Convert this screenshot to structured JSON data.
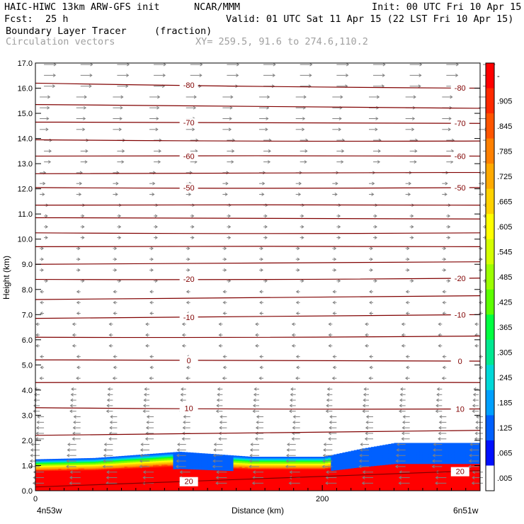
{
  "header": {
    "model": "HAIC-HIWC 13km ARW-GFS init",
    "org": "NCAR/MMM",
    "init": "Init: 00 UTC Fri 10 Apr 15",
    "fcst_label": "Fcst:",
    "fcst_value": "25 h",
    "valid": "Valid: 01 UTC Sat 11 Apr 15 (22 LST Fri 10 Apr 15)",
    "field": "Boundary Layer Tracer",
    "field_units": "(fraction)",
    "vectors": "Circulation vectors",
    "xy": "XY= 259.5, 91.6 to 274.6,110.2"
  },
  "chart_data": {
    "type": "heatmap",
    "ylabel": "Height (km)",
    "xlabel": "Distance (km)",
    "ylim": [
      0,
      17
    ],
    "xlim": [
      0,
      310
    ],
    "y_ticks": [
      "0.0",
      "1.0",
      "2.0",
      "3.0",
      "4.0",
      "5.0",
      "6.0",
      "7.0",
      "8.0",
      "9.0",
      "10.0",
      "11.0",
      "12.0",
      "13.0",
      "14.0",
      "15.0",
      "16.0",
      "17.0"
    ],
    "x_ticks": [
      {
        "value": 0,
        "label": "0"
      },
      {
        "value": 200,
        "label": "200"
      }
    ],
    "x_endpoints": {
      "left": "4n53w",
      "right": "6n51w"
    },
    "colorbar_labels": [
      "-",
      ".905",
      ".845",
      ".785",
      ".725",
      ".665",
      ".605",
      ".545",
      ".485",
      ".425",
      ".365",
      ".305",
      ".245",
      ".185",
      ".125",
      ".065",
      ".005"
    ],
    "colorbar_colors": [
      "#ff0000",
      "#ff2a00",
      "#ff5500",
      "#ff8000",
      "#ffaa00",
      "#ffd200",
      "#ffff00",
      "#d4ff00",
      "#9cff00",
      "#5cff00",
      "#00ff40",
      "#00e890",
      "#00d8d8",
      "#00a0ff",
      "#0060ff",
      "#0010ff",
      "#ffffff"
    ],
    "tracer_top_km": [
      {
        "x": 0,
        "top": 1.25
      },
      {
        "x": 40,
        "top": 1.3
      },
      {
        "x": 100,
        "top": 1.55
      },
      {
        "x": 150,
        "top": 1.35
      },
      {
        "x": 200,
        "top": 1.35
      },
      {
        "x": 225,
        "top": 1.65
      },
      {
        "x": 250,
        "top": 1.9
      },
      {
        "x": 310,
        "top": 1.9
      }
    ],
    "isotherms": [
      {
        "y_left": 16.2,
        "y_right": 16.0,
        "label": "-80"
      },
      {
        "y_left": 15.35,
        "y_right": 15.2,
        "label": ""
      },
      {
        "y_left": 14.65,
        "y_right": 14.6,
        "label": "-70"
      },
      {
        "y_left": 13.95,
        "y_right": 13.9,
        "label": ""
      },
      {
        "y_left": 13.3,
        "y_right": 13.3,
        "label": "-60"
      },
      {
        "y_left": 12.6,
        "y_right": 12.65,
        "label": ""
      },
      {
        "y_left": 12.05,
        "y_right": 12.05,
        "label": "-50"
      },
      {
        "y_left": 11.35,
        "y_right": 11.35,
        "label": ""
      },
      {
        "y_left": 10.85,
        "y_right": 10.8,
        "label": ""
      },
      {
        "y_left": 10.25,
        "y_right": 10.25,
        "label": ""
      },
      {
        "y_left": 9.7,
        "y_right": 9.7,
        "label": ""
      },
      {
        "y_left": 9.0,
        "y_right": 9.1,
        "label": ""
      },
      {
        "y_left": 8.4,
        "y_right": 8.45,
        "label": "-20"
      },
      {
        "y_left": 7.6,
        "y_right": 7.75,
        "label": ""
      },
      {
        "y_left": 6.85,
        "y_right": 7.0,
        "label": "-10"
      },
      {
        "y_left": 6.1,
        "y_right": 6.15,
        "label": ""
      },
      {
        "y_left": 5.2,
        "y_right": 5.15,
        "label": "0"
      },
      {
        "y_left": 4.3,
        "y_right": 4.3,
        "label": ""
      },
      {
        "y_left": 3.3,
        "y_right": 3.25,
        "label": "10"
      },
      {
        "y_left": 2.2,
        "y_right": 2.4,
        "label": ""
      },
      {
        "y_left": 0.15,
        "y_right": 0.8,
        "label": "20"
      }
    ]
  }
}
